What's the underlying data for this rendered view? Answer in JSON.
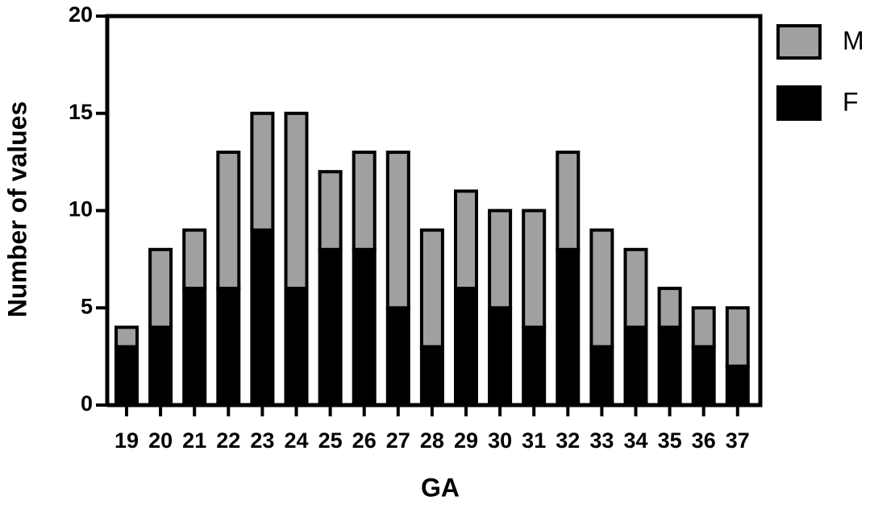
{
  "chart_data": {
    "type": "stacked-bar",
    "x_label": "GA",
    "y_label": "Number of values",
    "categories": [
      "19",
      "20",
      "21",
      "22",
      "23",
      "24",
      "25",
      "26",
      "27",
      "28",
      "29",
      "30",
      "31",
      "32",
      "33",
      "34",
      "35",
      "36",
      "37"
    ],
    "series": [
      {
        "name": "F",
        "color": "#000000",
        "values": [
          3,
          4,
          6,
          6,
          9,
          6,
          8,
          8,
          5,
          3,
          6,
          5,
          4,
          8,
          3,
          4,
          4,
          3,
          2
        ]
      },
      {
        "name": "M",
        "color": "#a0a0a2",
        "values": [
          1,
          4,
          3,
          7,
          6,
          9,
          4,
          5,
          8,
          6,
          5,
          5,
          6,
          5,
          6,
          4,
          2,
          2,
          3
        ]
      }
    ],
    "ylim": [
      0,
      20
    ],
    "yticks": [
      0,
      5,
      10,
      15,
      20
    ]
  }
}
